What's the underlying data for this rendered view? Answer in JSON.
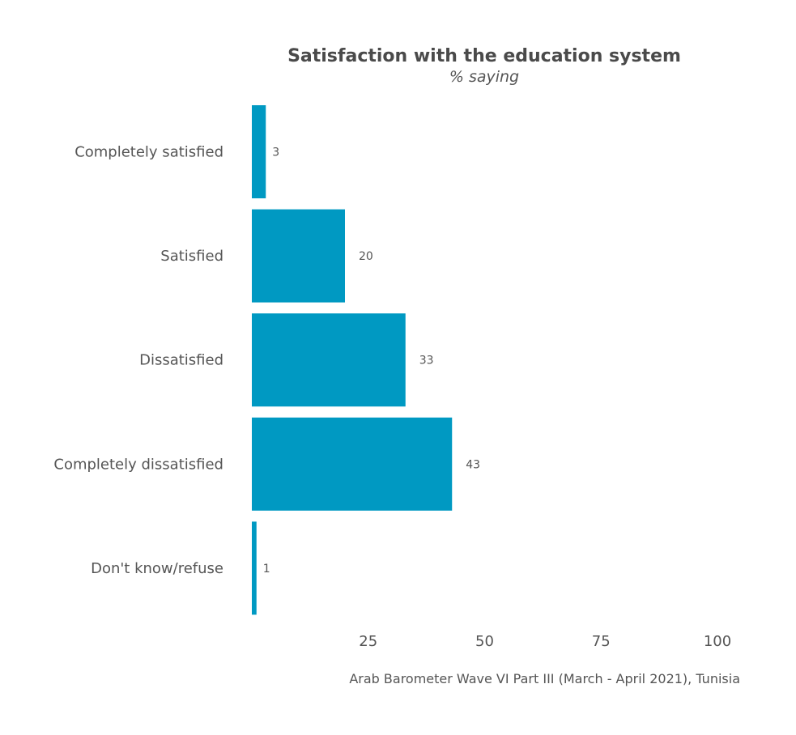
{
  "chart_data": {
    "type": "bar",
    "orientation": "horizontal",
    "title": "Satisfaction with the education system",
    "subtitle": "% saying",
    "caption": "Arab Barometer Wave VI Part III (March - April 2021), Tunisia",
    "categories": [
      "Completely satisfied",
      "Satisfied",
      "Dissatisfied",
      "Completely dissatisfied",
      "Don't know/refuse"
    ],
    "values": [
      3,
      20,
      33,
      43,
      1
    ],
    "value_labels": [
      "3",
      "20",
      "33",
      "43",
      "1"
    ],
    "xlim": [
      0,
      100
    ],
    "xticks": [
      25,
      50,
      75,
      100
    ],
    "xtick_labels": [
      "25",
      "50",
      "75",
      "100"
    ],
    "bar_color": "#0099c2",
    "grid": false,
    "legend": "none"
  }
}
